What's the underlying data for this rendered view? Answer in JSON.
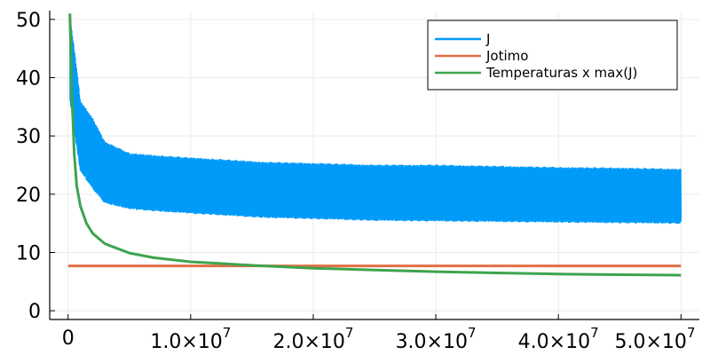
{
  "chart_data": {
    "type": "line",
    "title": "",
    "xlabel": "",
    "ylabel": "",
    "xlim": [
      -1500000,
      51500000
    ],
    "ylim": [
      -1.5,
      51.5
    ],
    "grid": true,
    "legend_position": "top-right",
    "x_ticks": [
      {
        "value": 0,
        "label": "0"
      },
      {
        "value": 10000000,
        "label": "1.0×10",
        "exp": "7"
      },
      {
        "value": 20000000,
        "label": "2.0×10",
        "exp": "7"
      },
      {
        "value": 30000000,
        "label": "3.0×10",
        "exp": "7"
      },
      {
        "value": 40000000,
        "label": "4.0×10",
        "exp": "7"
      },
      {
        "value": 50000000,
        "label": "5.0×10",
        "exp": "7"
      }
    ],
    "y_ticks": [
      {
        "value": 0,
        "label": "0"
      },
      {
        "value": 10,
        "label": "10"
      },
      {
        "value": 20,
        "label": "20"
      },
      {
        "value": 30,
        "label": "30"
      },
      {
        "value": 40,
        "label": "40"
      },
      {
        "value": 50,
        "label": "50"
      }
    ],
    "series": [
      {
        "name": "J",
        "color": "#009af9",
        "style": "noisy-band",
        "x": [
          150000,
          300000,
          500000,
          1000000,
          2000000,
          3000000,
          5000000,
          8000000,
          12000000,
          16000000,
          20000000,
          25000000,
          30000000,
          35000000,
          40000000,
          45000000,
          50000000
        ],
        "upper": [
          51,
          48,
          45,
          36,
          33,
          29,
          27,
          26.5,
          26,
          25.5,
          25.3,
          25,
          25,
          24.8,
          24.6,
          24.5,
          24.3
        ],
        "lower": [
          36,
          34,
          31,
          24,
          21,
          18.5,
          17.5,
          17,
          16.5,
          16,
          15.8,
          15.5,
          15.4,
          15.3,
          15.2,
          15.1,
          15.0
        ]
      },
      {
        "name": "Jotimo",
        "color": "#e26f46",
        "x": [
          0,
          50000000
        ],
        "y": [
          7.7,
          7.7
        ]
      },
      {
        "name": "Temperaturas x max(J)",
        "color": "#3da44d",
        "x": [
          150000,
          200000,
          300000,
          500000,
          700000,
          1000000,
          1500000,
          2000000,
          3000000,
          5000000,
          7000000,
          10000000,
          15000000,
          20000000,
          25000000,
          30000000,
          35000000,
          40000000,
          45000000,
          50000000
        ],
        "y": [
          51,
          47,
          38,
          27,
          21.5,
          18,
          15,
          13.3,
          11.5,
          9.9,
          9.1,
          8.4,
          7.8,
          7.3,
          7.0,
          6.7,
          6.5,
          6.3,
          6.2,
          6.1
        ]
      }
    ]
  }
}
